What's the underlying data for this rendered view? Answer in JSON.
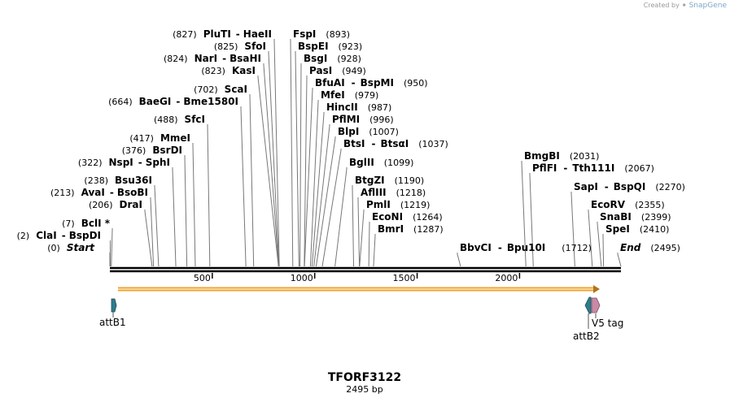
{
  "credit": {
    "prefix": "Created by",
    "brand": "SnapGene"
  },
  "map": {
    "name": "TFORF3122",
    "length_label": "2495 bp",
    "length": 2495,
    "ticks": [
      500,
      1000,
      1500,
      2000
    ],
    "sites": [
      {
        "pos": "(827)",
        "a": "PluTI",
        "b": "HaeII",
        "bp": 827
      },
      {
        "pos": "(825)",
        "a": "SfoI",
        "bp": 825
      },
      {
        "pos": "(824)",
        "a": "NarI",
        "b": "BsaHI",
        "bp": 824
      },
      {
        "pos": "(823)",
        "a": "KasI",
        "bp": 823
      },
      {
        "pos": "(702)",
        "a": "ScaI",
        "bp": 702
      },
      {
        "pos": "(664)",
        "a": "BaeGI",
        "b": "Bme1580I",
        "bp": 664
      },
      {
        "pos": "(488)",
        "a": "SfcI",
        "bp": 488
      },
      {
        "pos": "(417)",
        "a": "MmeI",
        "bp": 417
      },
      {
        "pos": "(376)",
        "a": "BsrDI",
        "bp": 376
      },
      {
        "pos": "(322)",
        "a": "NspI",
        "b": "SphI",
        "bp": 322
      },
      {
        "pos": "(238)",
        "a": "Bsu36I",
        "bp": 238
      },
      {
        "pos": "(213)",
        "a": "AvaI",
        "b": "BsoBI",
        "bp": 213
      },
      {
        "pos": "(206)",
        "a": "DraI",
        "bp": 206
      },
      {
        "pos": "(7)",
        "a": "BclI *",
        "bp": 7
      },
      {
        "pos": "(2)",
        "a": "ClaI",
        "b": "BspDI",
        "bp": 2
      },
      {
        "pos": "(0)",
        "a": "Start",
        "bp": 0,
        "italic": true
      },
      {
        "pos": "(893)",
        "a": "FspI",
        "bp": 893
      },
      {
        "pos": "(923)",
        "a": "BspEI",
        "bp": 923
      },
      {
        "pos": "(928)",
        "a": "BsgI",
        "bp": 928
      },
      {
        "pos": "(949)",
        "a": "PasI",
        "bp": 949
      },
      {
        "pos": "(950)",
        "a": "BfuAI",
        "b": "BspMI",
        "bp": 950
      },
      {
        "pos": "(979)",
        "a": "MfeI",
        "bp": 979
      },
      {
        "pos": "(987)",
        "a": "HincII",
        "bp": 987
      },
      {
        "pos": "(996)",
        "a": "PflMI",
        "bp": 996
      },
      {
        "pos": "(1007)",
        "a": "BlpI",
        "bp": 1007
      },
      {
        "pos": "(1037)",
        "a": "BtsI",
        "b": "BtsαI",
        "bp": 1037
      },
      {
        "pos": "(1099)",
        "a": "BglII",
        "bp": 1099
      },
      {
        "pos": "(1190)",
        "a": "BtgZI",
        "bp": 1190
      },
      {
        "pos": "(1218)",
        "a": "AflIII",
        "bp": 1218
      },
      {
        "pos": "(1219)",
        "a": "PmlI",
        "bp": 1219
      },
      {
        "pos": "(1264)",
        "a": "EcoNI",
        "bp": 1264
      },
      {
        "pos": "(1287)",
        "a": "BmrI",
        "bp": 1287
      },
      {
        "pos": "(1712)",
        "a": "BbvCI",
        "b": "Bpu10I",
        "bp": 1712
      },
      {
        "pos": "(2031)",
        "a": "BmgBI",
        "bp": 2031
      },
      {
        "pos": "(2067)",
        "a": "PflFI",
        "b": "Tth111I",
        "bp": 2067
      },
      {
        "pos": "(2270)",
        "a": "SapI",
        "b": "BspQI",
        "bp": 2270
      },
      {
        "pos": "(2355)",
        "a": "EcoRV",
        "bp": 2355
      },
      {
        "pos": "(2399)",
        "a": "SnaBI",
        "bp": 2399
      },
      {
        "pos": "(2410)",
        "a": "SpeI",
        "bp": 2410
      },
      {
        "pos": "(2495)",
        "a": "End",
        "bp": 2495,
        "italic": true
      }
    ],
    "features": {
      "orf_color": "#f0a030",
      "attB1": {
        "label": "attB1",
        "color": "#2e7d8c"
      },
      "attB2": {
        "label": "attB2",
        "color": "#2e7d8c"
      },
      "v5": {
        "label": "V5 tag",
        "color": "#c98aa6"
      }
    }
  }
}
